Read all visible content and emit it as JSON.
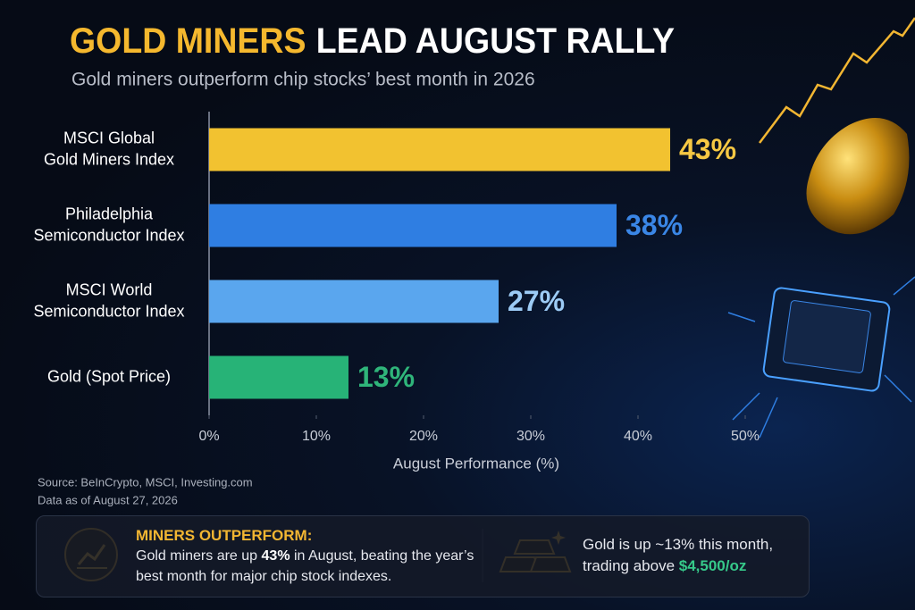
{
  "chart_data": {
    "type": "bar",
    "orientation": "horizontal",
    "title_highlight": "GOLD MINERS",
    "title": "LEAD AUGUST RALLY",
    "subtitle": "Gold miners outperform chip stocks’ best month in 2026",
    "categories": [
      [
        "MSCI Global",
        "Gold Miners Index"
      ],
      [
        "Philadelphia",
        "Semiconductor Index"
      ],
      [
        "MSCI World",
        "Semiconductor Index"
      ],
      [
        "Gold (Spot Price)"
      ]
    ],
    "values": [
      43,
      38,
      27,
      13
    ],
    "value_labels": [
      "43%",
      "38%",
      "27%",
      "13%"
    ],
    "colors": [
      "#f2c230",
      "#2f7ee2",
      "#5aa6ee",
      "#27b377"
    ],
    "label_colors": [
      "#f6c843",
      "#3a86e6",
      "#9ccbf5",
      "#2fb57a"
    ],
    "xlim": [
      0,
      50
    ],
    "xticks": [
      {
        "value": 0,
        "label": "0%"
      },
      {
        "value": 10,
        "label": "10%"
      },
      {
        "value": 20,
        "label": "20%"
      },
      {
        "value": 30,
        "label": "30%"
      },
      {
        "value": 40,
        "label": "40%"
      },
      {
        "value": 50,
        "label": "50%"
      }
    ],
    "xlabel": "August Performance (%)",
    "source": [
      "Source: BeInCrypto, MSCI, Investing.com",
      "Data as of August 27, 2026"
    ]
  },
  "callouts": [
    {
      "heading": "MINERS OUTPERFORM:",
      "parts": [
        "Gold miners are up ",
        "43%",
        " in August, beating the year’s best month for major chip stock indexes."
      ]
    },
    {
      "parts": [
        "Gold is up ~13% this month,",
        "trading above ",
        "$4,500/oz"
      ]
    }
  ]
}
